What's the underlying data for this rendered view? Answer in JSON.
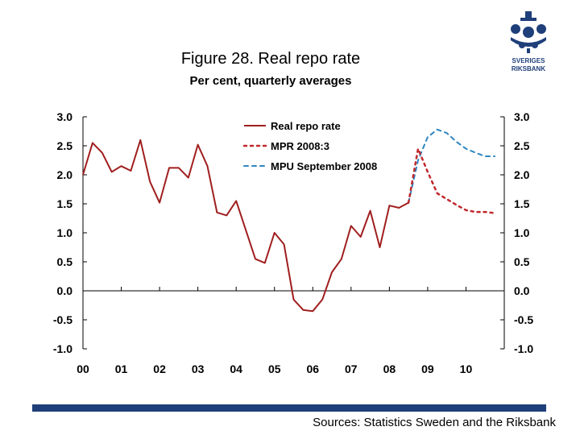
{
  "title": "Figure 28. Real repo rate",
  "subtitle": "Per cent, quarterly averages",
  "source": "Sources: Statistics Sweden and the Riksbank",
  "logo_text": "SVERIGES RIKSBANK",
  "colors": {
    "brand": "#1f3f7a",
    "series1": "#a01e1e",
    "series2": "#c0282d",
    "series3": "#2e86c1"
  },
  "chart_data": {
    "type": "line",
    "ylim": [
      -1.0,
      3.0
    ],
    "y_ticks": [
      "3.0",
      "2.5",
      "2.0",
      "1.5",
      "1.0",
      "0.5",
      "0.0",
      "-0.5",
      "-1.0"
    ],
    "y_tick_values": [
      3.0,
      2.5,
      2.0,
      1.5,
      1.0,
      0.5,
      0.0,
      -0.5,
      -1.0
    ],
    "x_ticks": [
      "00",
      "01",
      "02",
      "03",
      "04",
      "05",
      "06",
      "07",
      "08",
      "09",
      "10"
    ],
    "x_tick_values": [
      2000,
      2001,
      2002,
      2003,
      2004,
      2005,
      2006,
      2007,
      2008,
      2009,
      2010
    ],
    "xlim": [
      2000,
      2011
    ],
    "legend_position": "top-center",
    "series": [
      {
        "name": "Real repo rate",
        "style": "solid",
        "x": [
          2000.0,
          2000.25,
          2000.5,
          2000.75,
          2001.0,
          2001.25,
          2001.5,
          2001.75,
          2002.0,
          2002.25,
          2002.5,
          2002.75,
          2003.0,
          2003.25,
          2003.5,
          2003.75,
          2004.0,
          2004.25,
          2004.5,
          2004.75,
          2005.0,
          2005.25,
          2005.5,
          2005.75,
          2006.0,
          2006.25,
          2006.5,
          2006.75,
          2007.0,
          2007.25,
          2007.5,
          2007.75,
          2008.0,
          2008.25,
          2008.5
        ],
        "values": [
          2.0,
          2.55,
          2.38,
          2.05,
          2.15,
          2.07,
          2.6,
          1.88,
          1.52,
          2.12,
          2.12,
          1.95,
          2.52,
          2.15,
          1.35,
          1.3,
          1.55,
          1.05,
          0.55,
          0.48,
          1.0,
          0.8,
          -0.15,
          -0.33,
          -0.35,
          -0.15,
          0.32,
          0.55,
          1.12,
          0.93,
          1.38,
          0.75,
          1.47,
          1.43,
          1.52
        ]
      },
      {
        "name": "MPR 2008:3",
        "style": "dotted",
        "x": [
          2008.5,
          2008.75,
          2009.0,
          2009.25,
          2009.5,
          2009.75,
          2010.0,
          2010.25,
          2010.5,
          2010.75
        ],
        "values": [
          1.52,
          2.45,
          2.05,
          1.68,
          1.58,
          1.48,
          1.39,
          1.36,
          1.36,
          1.34
        ]
      },
      {
        "name": "MPU September 2008",
        "style": "dashed",
        "x": [
          2008.5,
          2008.75,
          2009.0,
          2009.25,
          2009.5,
          2009.75,
          2010.0,
          2010.25,
          2010.5,
          2010.75
        ],
        "values": [
          1.52,
          2.25,
          2.65,
          2.78,
          2.72,
          2.57,
          2.45,
          2.38,
          2.32,
          2.32
        ]
      }
    ]
  }
}
